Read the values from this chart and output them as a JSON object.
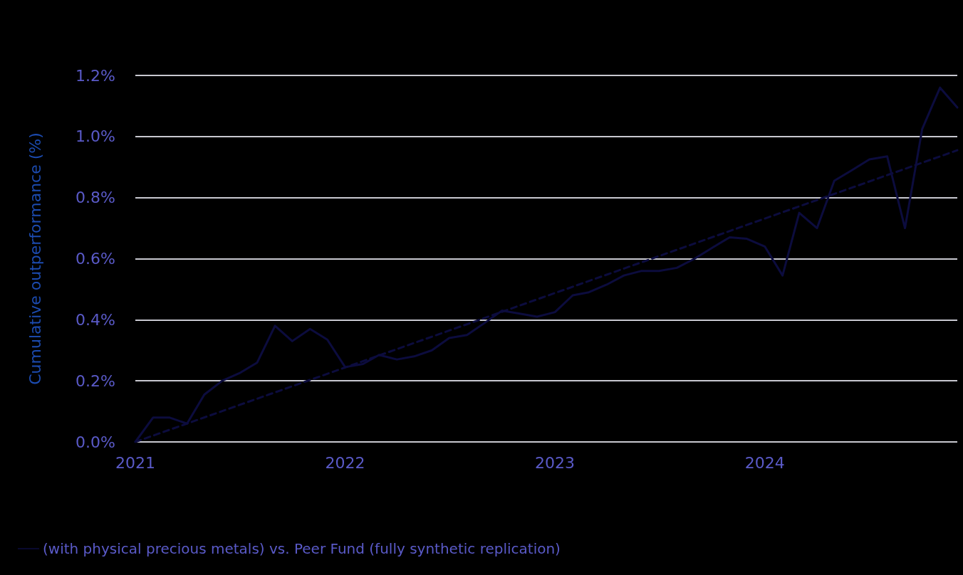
{
  "chart_data": {
    "type": "line",
    "ylabel": "Cumulative outperformance (%)",
    "x": [
      "2021-01",
      "2021-02",
      "2021-03",
      "2021-04",
      "2021-05",
      "2021-06",
      "2021-07",
      "2021-08",
      "2021-09",
      "2021-10",
      "2021-11",
      "2021-12",
      "2022-01",
      "2022-02",
      "2022-03",
      "2022-04",
      "2022-05",
      "2022-06",
      "2022-07",
      "2022-08",
      "2022-09",
      "2022-10",
      "2022-11",
      "2022-12",
      "2023-01",
      "2023-02",
      "2023-03",
      "2023-04",
      "2023-05",
      "2023-06",
      "2023-07",
      "2023-08",
      "2023-09",
      "2023-10",
      "2023-11",
      "2023-12",
      "2024-01",
      "2024-02",
      "2024-03",
      "2024-04",
      "2024-05",
      "2024-06",
      "2024-07",
      "2024-08",
      "2024-09",
      "2024-10",
      "2024-11",
      "2024-12"
    ],
    "series": [
      {
        "name": "(with physical precious metals) vs. Peer Fund (fully synthetic replication)",
        "color": "#0c0c3e",
        "line_style": "solid",
        "values": [
          0.0,
          0.08,
          0.08,
          0.06,
          0.155,
          0.2,
          0.225,
          0.26,
          0.38,
          0.33,
          0.37,
          0.335,
          0.245,
          0.255,
          0.285,
          0.27,
          0.28,
          0.3,
          0.34,
          0.35,
          0.39,
          0.43,
          0.42,
          0.41,
          0.425,
          0.48,
          0.49,
          0.515,
          0.545,
          0.56,
          0.56,
          0.57,
          0.6,
          0.635,
          0.67,
          0.665,
          0.64,
          0.545,
          0.75,
          0.7,
          0.855,
          0.89,
          0.925,
          0.935,
          0.7,
          1.025,
          1.16,
          1.095
        ]
      },
      {
        "type": "line",
        "color": "#0c0c3e",
        "line_style": "dashed",
        "x": [
          "2021-01",
          "2024-12"
        ],
        "values": [
          0.0,
          0.955
        ]
      }
    ],
    "xlim": [
      "2021-01",
      "2024-12"
    ],
    "xticks": [
      "2021",
      "2022",
      "2023",
      "2024"
    ],
    "ylim": [
      0,
      1.2
    ],
    "yticks": [
      {
        "value": 0,
        "label": "0.0%"
      },
      {
        "value": 0.2,
        "label": "0.2%"
      },
      {
        "value": 0.4,
        "label": "0.4%"
      },
      {
        "value": 0.6,
        "label": "0.6%"
      },
      {
        "value": 0.8,
        "label": "0.8%"
      },
      {
        "value": 1.0,
        "label": "1.0%"
      },
      {
        "value": 1.2,
        "label": "1.2%"
      }
    ],
    "grid": "y",
    "legend": "bottom left",
    "marker": "none"
  }
}
